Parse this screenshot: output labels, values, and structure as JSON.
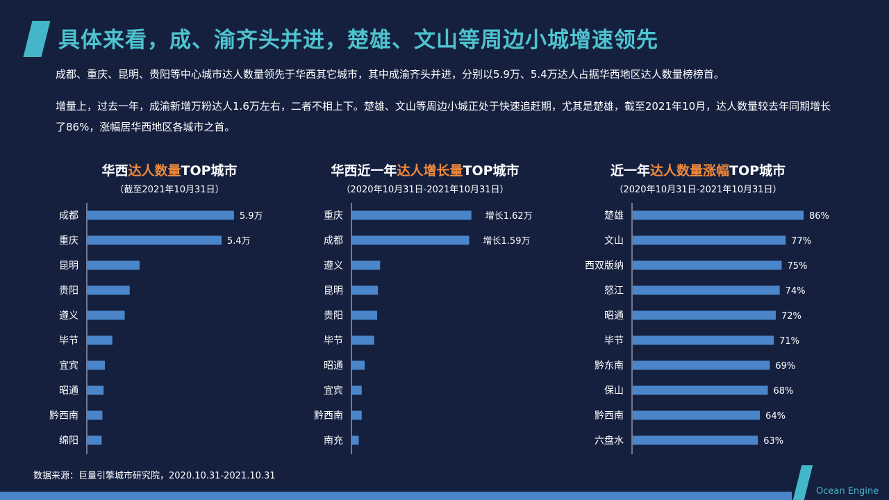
{
  "title": "具体来看，成、渝齐头并进，楚雄、文山等周边小城增速领先",
  "paragraph1": "成都、重庆、昆明、贵阳等中心城市达人数量领先于华西其它城市，其中成渝齐头并进，分别以5.9万、5.4万达人占据华西地区达人数量榜榜首。",
  "paragraph2": "增量上，过去一年，成渝新增万粉达人1.6万左右，二者不相上下。楚雄、文山等周边小城正处于快速追赶期，尤其是楚雄，截至2021年10月，达人数量较去年同期增长了86%，涨幅居华西地区各城市之首。",
  "charts": [
    {
      "title_pre": "华西",
      "title_hl": "达人数量",
      "title_post": "TOP城市",
      "subtitle": "（截至2021年10月31日）"
    },
    {
      "title_pre": "华西近一年",
      "title_hl": "达人增长量",
      "title_post": "TOP城市",
      "subtitle": "（2020年10月31日-2021年10月31日）"
    },
    {
      "title_pre": "近一年",
      "title_hl": "达人数量涨幅",
      "title_post": "TOP城市",
      "subtitle": "（2020年10月31日-2021年10月31日）"
    }
  ],
  "chart_data": [
    {
      "type": "bar",
      "orientation": "horizontal",
      "title": "华西达人数量TOP城市",
      "categories": [
        "成都",
        "重庆",
        "昆明",
        "贵阳",
        "遵义",
        "毕节",
        "宜宾",
        "昭通",
        "黔西南",
        "绵阳"
      ],
      "values": [
        5.9,
        5.4,
        2.1,
        1.7,
        1.5,
        1.0,
        0.7,
        0.65,
        0.6,
        0.57
      ],
      "labels": [
        "5.9万",
        "5.4万",
        "",
        "",
        "",
        "",
        "",
        "",
        "",
        ""
      ],
      "unit": "万",
      "xlim": [
        0,
        6.1
      ]
    },
    {
      "type": "bar",
      "orientation": "horizontal",
      "title": "华西近一年达人增长量TOP城市",
      "categories": [
        "重庆",
        "成都",
        "遵义",
        "昆明",
        "贵阳",
        "毕节",
        "昭通",
        "宜宾",
        "黔西南",
        "南充"
      ],
      "values": [
        1.62,
        1.59,
        0.38,
        0.35,
        0.34,
        0.3,
        0.17,
        0.13,
        0.13,
        0.09
      ],
      "labels": [
        "增长1.62万",
        "增长1.59万",
        "",
        "",
        "",
        "",
        "",
        "",
        "",
        ""
      ],
      "unit": "万",
      "xlim": [
        0,
        1.67
      ]
    },
    {
      "type": "bar",
      "orientation": "horizontal",
      "title": "近一年达人数量涨幅TOP城市",
      "categories": [
        "楚雄",
        "文山",
        "西双版纳",
        "怒江",
        "昭通",
        "毕节",
        "黔东南",
        "保山",
        "黔西南",
        "六盘水"
      ],
      "values": [
        86,
        77,
        75,
        74,
        72,
        71,
        69,
        68,
        64,
        63
      ],
      "labels": [
        "86%",
        "77%",
        "75%",
        "74%",
        "72%",
        "71%",
        "69%",
        "68%",
        "64%",
        "63%"
      ],
      "unit": "%",
      "xlim": [
        0,
        86
      ]
    }
  ],
  "footer": "数据来源：巨量引擎城市研究院，2020.10.31-2021.10.31",
  "logo": "Ocean Engine",
  "colors": {
    "bar": "#4a86c9",
    "highlight": "#f08a3c",
    "title": "#4fc3cf",
    "axis": "#cfd6e6"
  }
}
